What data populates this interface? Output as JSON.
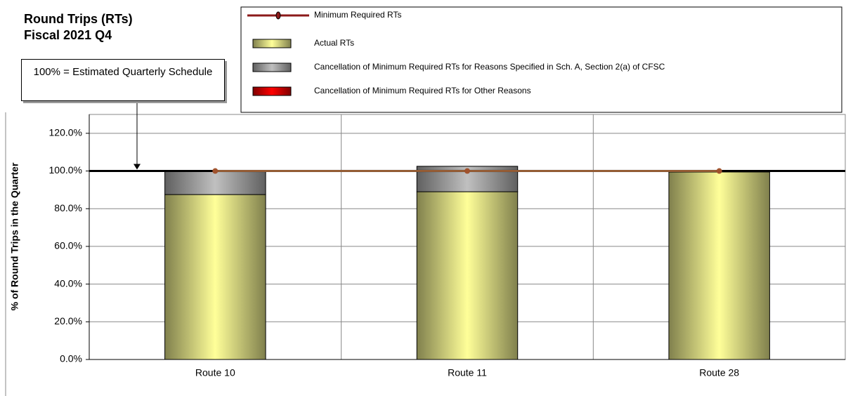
{
  "chart_data": {
    "type": "bar",
    "title": [
      "Round Trips (RTs)",
      "Fiscal 2021 Q4"
    ],
    "y_label": "% of Round Trips in the Quarter",
    "categories": [
      "Route 10",
      "Route 11",
      "Route 28"
    ],
    "stacked": true,
    "series": [
      {
        "name": "Actual RTs",
        "color": "#ffff99",
        "values": [
          87.5,
          89,
          99.5
        ]
      },
      {
        "name": "Cancellation of Minimum Required RTs for Reasons Specified in Sch. A, Section 2(a) of CFSC",
        "color": "#c0c0c0",
        "values": [
          12.5,
          13.5,
          0.5
        ]
      },
      {
        "name": "Cancellation of Minimum Required RTs for Other Reasons",
        "color": "#ff0000",
        "values": [
          0,
          0,
          0
        ]
      },
      {
        "name": "Minimum Required RTs",
        "type": "line",
        "color": "#8b1a1a",
        "values": [
          100,
          100,
          100
        ]
      }
    ],
    "reference_line": {
      "value": 100,
      "label": "100% = Estimated Quarterly Schedule",
      "color": "#000000"
    },
    "ylim": [
      0,
      130
    ],
    "yticks": [
      {
        "value": 0,
        "label": "0.0%"
      },
      {
        "value": 20,
        "label": "20.0%"
      },
      {
        "value": 40,
        "label": "40.0%"
      },
      {
        "value": 60,
        "label": "60.0%"
      },
      {
        "value": 80,
        "label": "80.0%"
      },
      {
        "value": 100,
        "label": "100.0%"
      },
      {
        "value": 120,
        "label": "120.0%"
      }
    ],
    "grid": true
  }
}
